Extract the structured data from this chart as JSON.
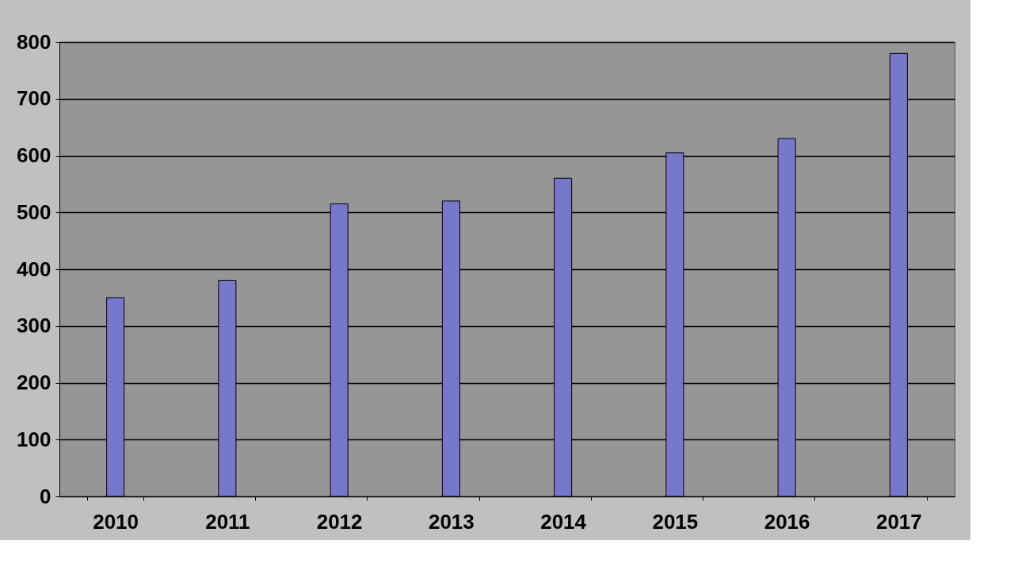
{
  "chart_data": {
    "type": "bar",
    "categories": [
      "2010",
      "2011",
      "2012",
      "2013",
      "2014",
      "2015",
      "2016",
      "2017"
    ],
    "values": [
      350,
      380,
      515,
      520,
      560,
      605,
      630,
      780
    ],
    "color": "#7777cc",
    "ylim": [
      0,
      800
    ],
    "yticks": [
      0,
      100,
      200,
      300,
      400,
      500,
      600,
      700,
      800
    ],
    "grid": "y"
  }
}
